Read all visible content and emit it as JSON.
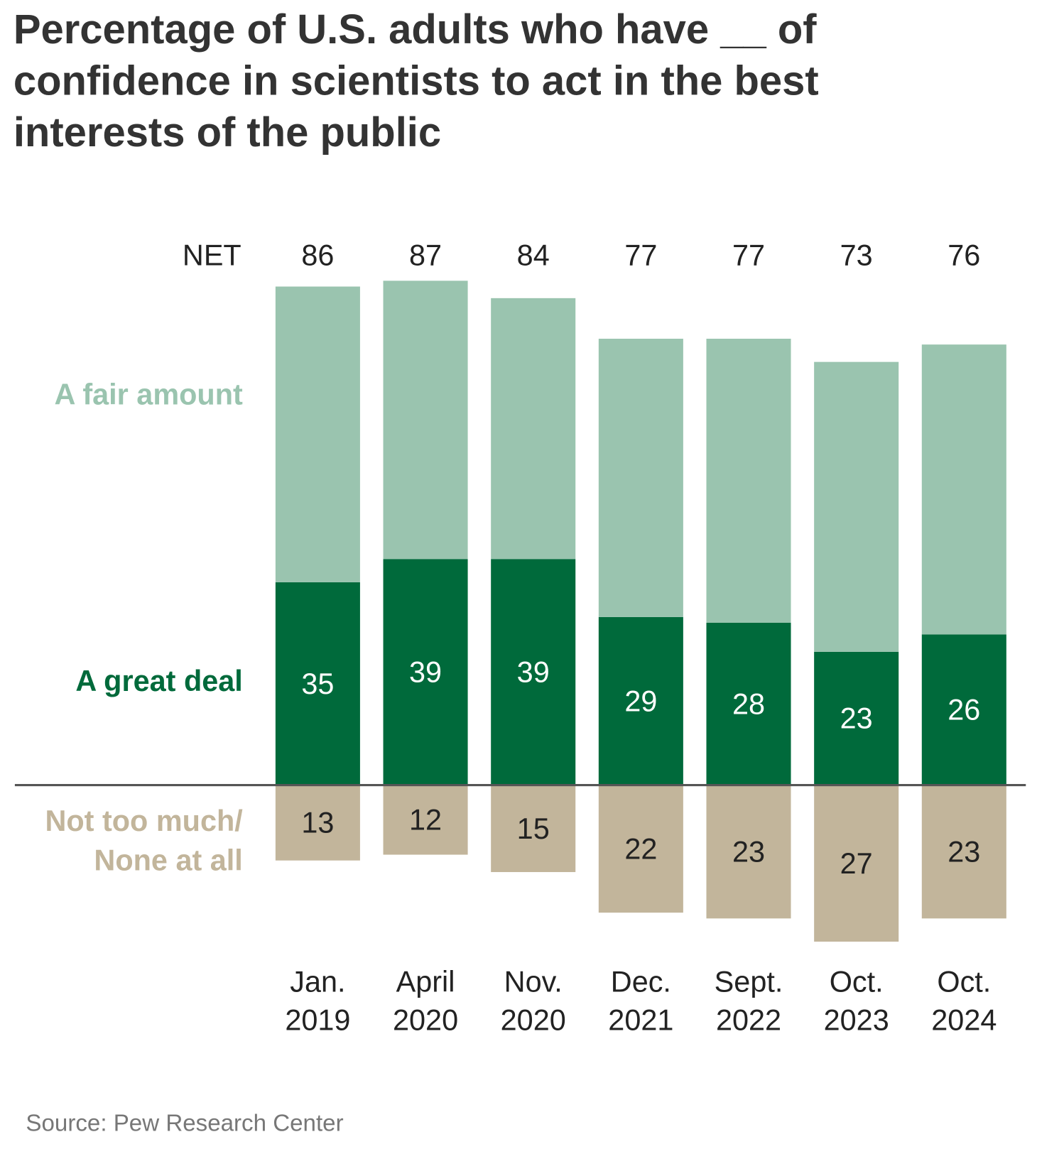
{
  "chart_data": {
    "type": "diverging-stacked-bar",
    "title": "Percentage of U.S. adults who have __ of confidence in scientists to act in the best interests of the public",
    "categories": [
      "Jan.\n2019",
      "April\n2020",
      "Nov.\n2020",
      "Dec.\n2021",
      "Sept.\n2022",
      "Oct.\n2023",
      "Oct.\n2024"
    ],
    "series": [
      {
        "name": "A great deal",
        "color": "#006a3b",
        "values": [
          35,
          39,
          39,
          29,
          28,
          23,
          26
        ]
      },
      {
        "name": "A fair amount",
        "color": "#9ac4af",
        "values": [
          51,
          48,
          45,
          48,
          49,
          50,
          50
        ]
      },
      {
        "name": "Not too much/\nNone at all",
        "color": "#c2b59b",
        "values": [
          13,
          12,
          15,
          22,
          23,
          27,
          23
        ],
        "direction": "down"
      }
    ],
    "net": {
      "label": "NET",
      "values": [
        86,
        87,
        84,
        77,
        77,
        73,
        76
      ]
    },
    "source": "Source: Pew Research Center"
  }
}
